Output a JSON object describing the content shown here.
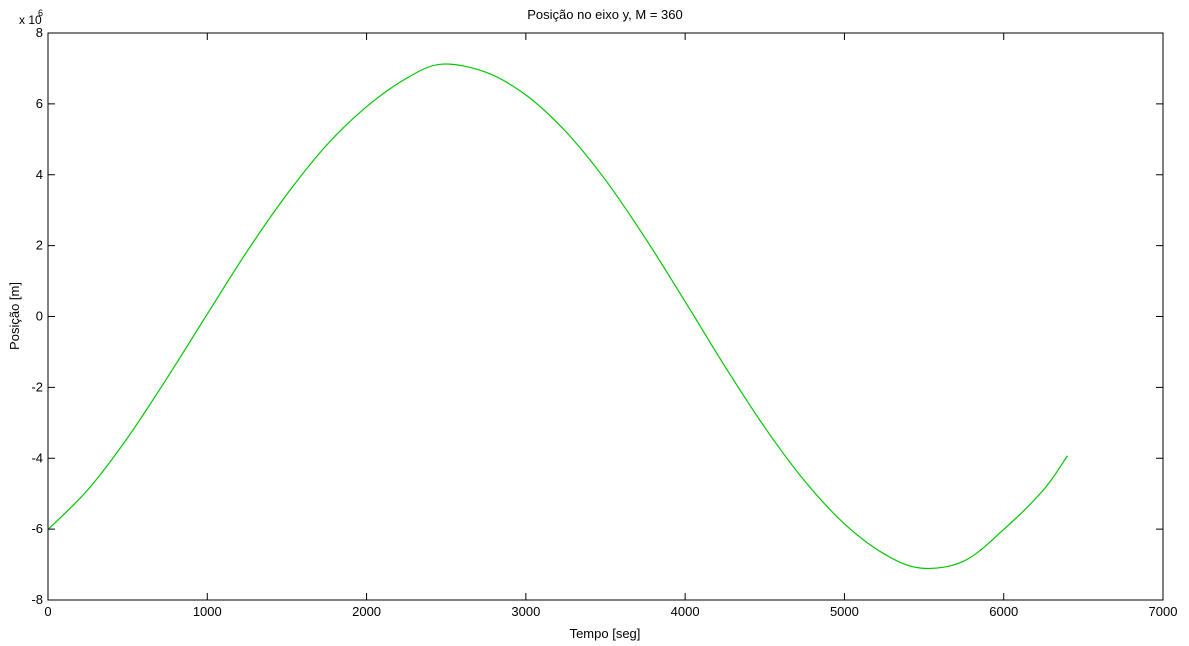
{
  "chart_data": {
    "type": "line",
    "title": "Posição no eixo y, M = 360",
    "xlabel": "Tempo [seg]",
    "ylabel": "Posição [m]",
    "y_multiplier_base": "x 10",
    "y_multiplier_exp": "6",
    "xlim": [
      0,
      7000
    ],
    "ylim": [
      -8,
      8
    ],
    "xticks": [
      0,
      1000,
      2000,
      3000,
      4000,
      5000,
      6000,
      7000
    ],
    "yticks": [
      -8,
      -6,
      -4,
      -2,
      0,
      2,
      4,
      6,
      8
    ],
    "grid": false,
    "series": [
      {
        "color": "#00c800",
        "x": [
          0,
          250,
          500,
          750,
          1000,
          1250,
          1500,
          1750,
          2000,
          2250,
          2470,
          2750,
          3000,
          3250,
          3500,
          3750,
          4000,
          4250,
          4500,
          4750,
          5000,
          5250,
          5480,
          5750,
          6000,
          6250,
          6400
        ],
        "y": [
          -6.01,
          -4.89,
          -3.42,
          -1.72,
          0.07,
          1.84,
          3.45,
          4.84,
          5.92,
          6.72,
          7.12,
          6.89,
          6.25,
          5.22,
          3.85,
          2.21,
          0.42,
          -1.41,
          -3.13,
          -4.64,
          -5.85,
          -6.7,
          -7.1,
          -6.9,
          -6.01,
          -4.89,
          -3.93
        ]
      }
    ]
  }
}
